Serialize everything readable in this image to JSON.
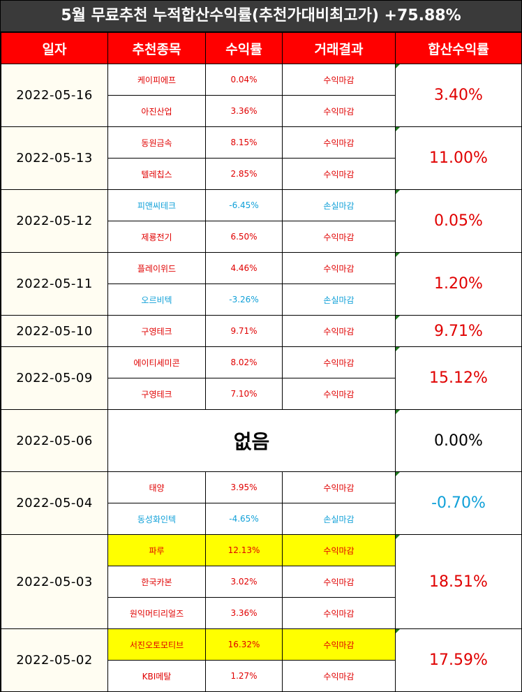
{
  "title": "5월 무료추천 누적합산수익률(추천가대비최고가) +75.88%",
  "headers": {
    "date": "일자",
    "stock": "추천종목",
    "return": "수익률",
    "result": "거래결과",
    "cumulative": "합산수익률"
  },
  "colors": {
    "header_bg": "#ff0000",
    "title_bg": "#3a3a3a",
    "profit": "#e00000",
    "loss": "#10a0d8",
    "highlight": "#ffff00"
  },
  "groups": [
    {
      "date": "2022-05-16",
      "cumulative": "3.40%",
      "cum_type": "profit",
      "rows": [
        {
          "name": "케이피에프",
          "ret": "0.04%",
          "result": "수익마감",
          "type": "profit"
        },
        {
          "name": "아진산업",
          "ret": "3.36%",
          "result": "수익마감",
          "type": "profit"
        }
      ]
    },
    {
      "date": "2022-05-13",
      "cumulative": "11.00%",
      "cum_type": "profit",
      "rows": [
        {
          "name": "동원금속",
          "ret": "8.15%",
          "result": "수익마감",
          "type": "profit"
        },
        {
          "name": "텔레칩스",
          "ret": "2.85%",
          "result": "수익마감",
          "type": "profit"
        }
      ]
    },
    {
      "date": "2022-05-12",
      "cumulative": "0.05%",
      "cum_type": "profit",
      "rows": [
        {
          "name": "피앤씨테크",
          "ret": "-6.45%",
          "result": "손실마감",
          "type": "loss"
        },
        {
          "name": "제룡전기",
          "ret": "6.50%",
          "result": "수익마감",
          "type": "profit"
        }
      ]
    },
    {
      "date": "2022-05-11",
      "cumulative": "1.20%",
      "cum_type": "profit",
      "rows": [
        {
          "name": "플레이위드",
          "ret": "4.46%",
          "result": "수익마감",
          "type": "profit"
        },
        {
          "name": "오르비텍",
          "ret": "-3.26%",
          "result": "손실마감",
          "type": "loss"
        }
      ]
    },
    {
      "date": "2022-05-10",
      "cumulative": "9.71%",
      "cum_type": "profit",
      "rows": [
        {
          "name": "구영테크",
          "ret": "9.71%",
          "result": "수익마감",
          "type": "profit"
        }
      ]
    },
    {
      "date": "2022-05-09",
      "cumulative": "15.12%",
      "cum_type": "profit",
      "rows": [
        {
          "name": "에이티세미콘",
          "ret": "8.02%",
          "result": "수익마감",
          "type": "profit"
        },
        {
          "name": "구영테크",
          "ret": "7.10%",
          "result": "수익마감",
          "type": "profit"
        }
      ]
    },
    {
      "date": "2022-05-06",
      "cumulative": "0.00%",
      "cum_type": "neutral",
      "none_text": "없음",
      "rows": []
    },
    {
      "date": "2022-05-04",
      "cumulative": "-0.70%",
      "cum_type": "loss",
      "rows": [
        {
          "name": "태양",
          "ret": "3.95%",
          "result": "수익마감",
          "type": "profit"
        },
        {
          "name": "동성화인텍",
          "ret": "-4.65%",
          "result": "손실마감",
          "type": "loss"
        }
      ]
    },
    {
      "date": "2022-05-03",
      "cumulative": "18.51%",
      "cum_type": "profit",
      "rows": [
        {
          "name": "파루",
          "ret": "12.13%",
          "result": "수익마감",
          "type": "profit",
          "highlight": true
        },
        {
          "name": "한국카본",
          "ret": "3.02%",
          "result": "수익마감",
          "type": "profit"
        },
        {
          "name": "원익머티리얼즈",
          "ret": "3.36%",
          "result": "수익마감",
          "type": "profit"
        }
      ]
    },
    {
      "date": "2022-05-02",
      "cumulative": "17.59%",
      "cum_type": "profit",
      "rows": [
        {
          "name": "서진오토모티브",
          "ret": "16.32%",
          "result": "수익마감",
          "type": "profit",
          "highlight": true
        },
        {
          "name": "KBI메탈",
          "ret": "1.27%",
          "result": "수익마감",
          "type": "profit"
        }
      ]
    }
  ]
}
